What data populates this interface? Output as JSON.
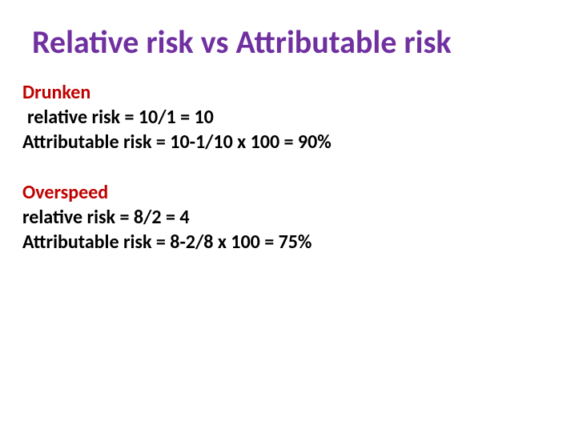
{
  "slide": {
    "title": "Relative risk vs Attributable risk",
    "title_color": "#7030a0",
    "title_fontsize": 40,
    "background_color": "#ffffff",
    "sections": [
      {
        "heading": "Drunken",
        "heading_color": "#c00000",
        "lines": [
          " relative risk = 10/1 = 10",
          "Attributable risk = 10-1/10 x 100 = 90%"
        ]
      },
      {
        "heading": "Overspeed",
        "heading_color": "#c00000",
        "lines": [
          "relative risk = 8/2 = 4",
          "Attributable risk = 8-2/8 x 100 = 75%"
        ]
      }
    ],
    "body_color": "#000000",
    "body_fontsize": 24,
    "font_family": "Calibri"
  }
}
